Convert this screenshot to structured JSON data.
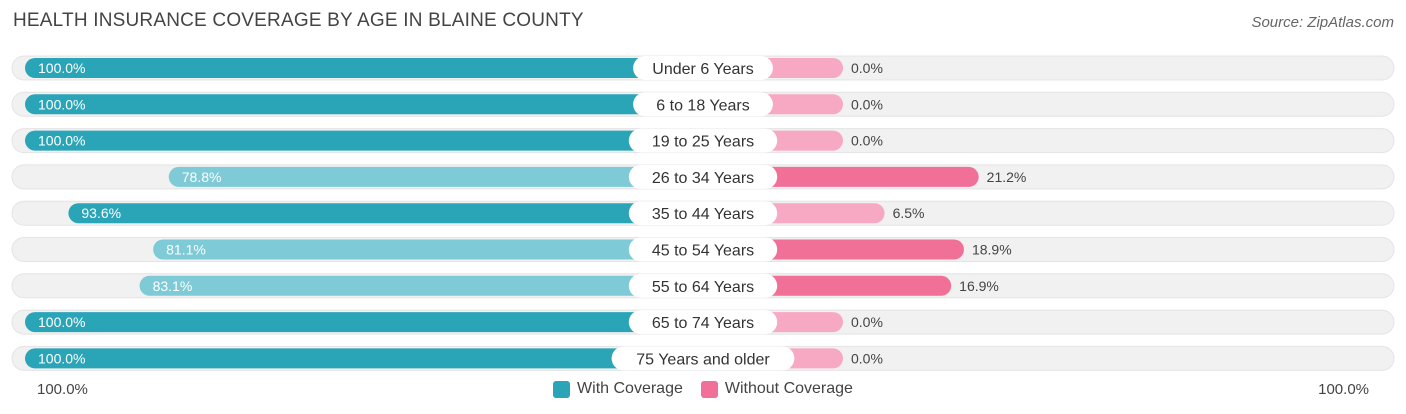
{
  "header": {
    "title": "HEALTH INSURANCE COVERAGE BY AGE IN BLAINE COUNTY",
    "source": "Source: ZipAtlas.com"
  },
  "footer": {
    "left_label": "100.0%",
    "right_label": "100.0%"
  },
  "colors": {
    "with_strong": "#2aa5b8",
    "with_light": "#7ecad6",
    "without_strong": "#f07098",
    "without_light": "#f7a8c2",
    "track": "#f1f1f1"
  },
  "chart_data": {
    "type": "bar",
    "title": "HEALTH INSURANCE COVERAGE BY AGE IN BLAINE COUNTY",
    "categories": [
      "Under 6 Years",
      "6 to 18 Years",
      "19 to 25 Years",
      "26 to 34 Years",
      "35 to 44 Years",
      "45 to 54 Years",
      "55 to 64 Years",
      "65 to 74 Years",
      "75 Years and older"
    ],
    "series": [
      {
        "name": "With Coverage",
        "values": [
          100.0,
          100.0,
          100.0,
          78.8,
          93.6,
          81.1,
          83.1,
          100.0,
          100.0
        ],
        "labels": [
          "100.0%",
          "100.0%",
          "100.0%",
          "78.8%",
          "93.6%",
          "81.1%",
          "83.1%",
          "100.0%",
          "100.0%"
        ]
      },
      {
        "name": "Without Coverage",
        "values": [
          0.0,
          0.0,
          0.0,
          21.2,
          6.5,
          18.9,
          16.9,
          0.0,
          0.0
        ],
        "labels": [
          "0.0%",
          "0.0%",
          "0.0%",
          "21.2%",
          "6.5%",
          "18.9%",
          "16.9%",
          "0.0%",
          "0.0%"
        ]
      }
    ],
    "xlim": [
      0,
      100
    ],
    "legend": {
      "position": "bottom-center",
      "entries": [
        "With Coverage",
        "Without Coverage"
      ]
    }
  }
}
